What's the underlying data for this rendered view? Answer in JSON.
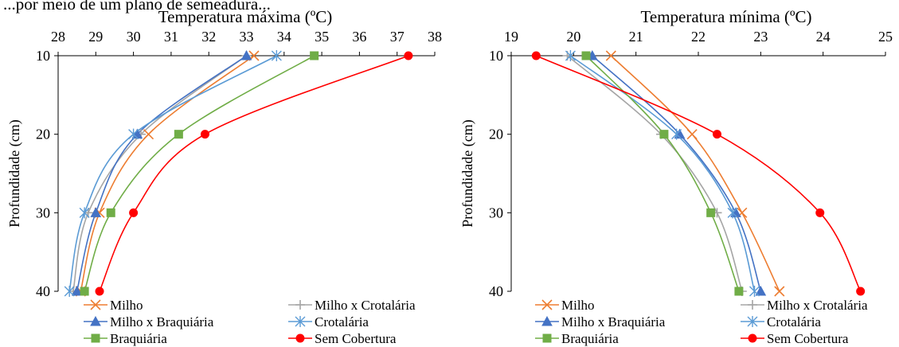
{
  "header_fragment": "...por meio de um plano de semeadura...",
  "chart_data": [
    {
      "type": "line",
      "title": "Temperatura máxima (ºC)",
      "ylabel": "Profundidade (cm)",
      "xlabel": "",
      "xlim": [
        28,
        38
      ],
      "ylim": [
        10,
        40
      ],
      "y_inverted": true,
      "x_axis_position": "top",
      "x_ticks": [
        "28",
        "29",
        "30",
        "31",
        "32",
        "33",
        "34",
        "35",
        "36",
        "37",
        "38"
      ],
      "y_ticks": [
        "10",
        "20",
        "30",
        "40"
      ],
      "y": [
        10,
        20,
        30,
        40
      ],
      "series": [
        {
          "name": "Milho",
          "color": "#ED7D31",
          "marker": "x",
          "values": [
            33.2,
            30.4,
            29.1,
            28.6
          ]
        },
        {
          "name": "Milho x Crotalária",
          "color": "#A5A5A5",
          "marker": "plus",
          "values": [
            33.0,
            30.2,
            28.8,
            28.4
          ]
        },
        {
          "name": "Milho x Braquiária",
          "color": "#4472C4",
          "marker": "triangle",
          "values": [
            33.0,
            30.1,
            29.0,
            28.5
          ]
        },
        {
          "name": "Crotalária",
          "color": "#5B9BD5",
          "marker": "asterisk",
          "values": [
            33.8,
            30.0,
            28.7,
            28.3
          ]
        },
        {
          "name": "Braquiária",
          "color": "#70AD47",
          "marker": "square",
          "values": [
            34.8,
            31.2,
            29.4,
            28.7
          ]
        },
        {
          "name": "Sem Cobertura",
          "color": "#FF0000",
          "marker": "circle",
          "values": [
            37.3,
            31.9,
            30.0,
            29.1
          ]
        }
      ],
      "legend_position": "bottom"
    },
    {
      "type": "line",
      "title": "Temperatura mínima (ºC)",
      "ylabel": "Profundidade (cm)",
      "xlabel": "",
      "xlim": [
        19,
        25
      ],
      "ylim": [
        10,
        40
      ],
      "y_inverted": true,
      "x_axis_position": "top",
      "x_ticks": [
        "19",
        "20",
        "21",
        "22",
        "23",
        "24",
        "25"
      ],
      "y_ticks": [
        "10",
        "20",
        "30",
        "40"
      ],
      "y": [
        10,
        20,
        30,
        40
      ],
      "series": [
        {
          "name": "Milho",
          "color": "#ED7D31",
          "marker": "x",
          "values": [
            20.6,
            21.9,
            22.7,
            23.3
          ]
        },
        {
          "name": "Milho x Crotalária",
          "color": "#A5A5A5",
          "marker": "plus",
          "values": [
            19.9,
            21.4,
            22.3,
            22.7
          ]
        },
        {
          "name": "Milho x Braquiária",
          "color": "#4472C4",
          "marker": "triangle",
          "values": [
            20.3,
            21.7,
            22.6,
            23.0
          ]
        },
        {
          "name": "Crotalária",
          "color": "#5B9BD5",
          "marker": "asterisk",
          "values": [
            19.95,
            21.65,
            22.55,
            22.9
          ]
        },
        {
          "name": "Braquiária",
          "color": "#70AD47",
          "marker": "square",
          "values": [
            20.2,
            21.45,
            22.2,
            22.65
          ]
        },
        {
          "name": "Sem Cobertura",
          "color": "#FF0000",
          "marker": "circle",
          "values": [
            19.4,
            22.3,
            23.95,
            24.6
          ]
        }
      ],
      "legend_position": "bottom"
    }
  ]
}
